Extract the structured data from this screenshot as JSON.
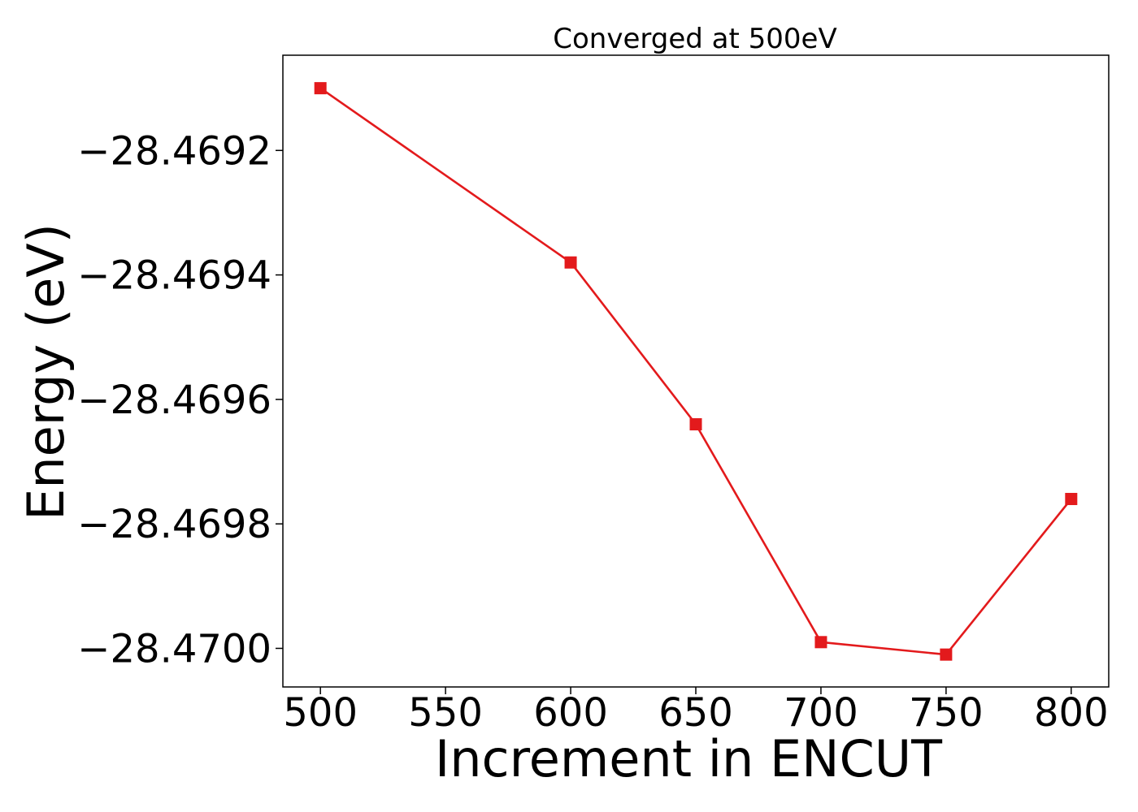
{
  "chart_data": {
    "type": "line",
    "title": "Converged at 500eV",
    "xlabel": "Increment in ENCUT",
    "ylabel": "Energy (eV)",
    "x": [
      500,
      600,
      650,
      700,
      750,
      800
    ],
    "series": [
      {
        "values": [
          -28.4691,
          -28.46938,
          -28.46964,
          -28.46999,
          -28.47001,
          -28.46976
        ],
        "color": "#e31a1c",
        "marker": "square"
      }
    ],
    "xlim": [
      485,
      815
    ],
    "ylim": [
      -28.470062,
      -28.469047
    ],
    "xticks": [
      500,
      550,
      600,
      650,
      700,
      750,
      800
    ],
    "xtick_labels": [
      "500",
      "550",
      "600",
      "650",
      "700",
      "750",
      "800"
    ],
    "yticks": [
      -28.4692,
      -28.4694,
      -28.4696,
      -28.4698,
      -28.47
    ],
    "ytick_labels": [
      "−28.4692",
      "−28.4694",
      "−28.4696",
      "−28.4698",
      "−28.4700"
    ],
    "grid": false,
    "legend": "none"
  }
}
